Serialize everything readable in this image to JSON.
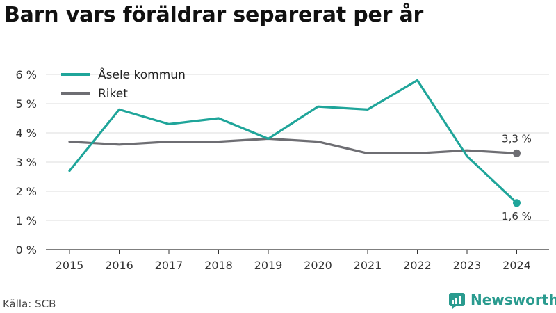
{
  "title": "Barn vars föräldrar separerat per år",
  "source": "Källa: SCB",
  "brand": {
    "name": "Newsworthy",
    "icon": "newsworthy-logo-icon"
  },
  "colors": {
    "asele": "#1fa59a",
    "riket": "#6e6e73",
    "grid": "#dddddd",
    "axis": "#333333"
  },
  "chart_data": {
    "type": "line",
    "categories": [
      "2015",
      "2016",
      "2017",
      "2018",
      "2019",
      "2020",
      "2021",
      "2022",
      "2023",
      "2024"
    ],
    "series": [
      {
        "name": "Åsele kommun",
        "values": [
          2.7,
          4.8,
          4.3,
          4.5,
          3.8,
          4.9,
          4.8,
          5.8,
          3.2,
          1.6
        ],
        "end_label": "1,6 %"
      },
      {
        "name": "Riket",
        "values": [
          3.7,
          3.6,
          3.7,
          3.7,
          3.8,
          3.7,
          3.3,
          3.3,
          3.4,
          3.3
        ],
        "end_label": "3,3 %"
      }
    ],
    "ylim": [
      0,
      6
    ],
    "yticks": [
      0,
      1,
      2,
      3,
      4,
      5,
      6
    ],
    "ytick_labels": [
      "0 %",
      "1 %",
      "2 %",
      "3 %",
      "4 %",
      "5 %",
      "6 %"
    ],
    "grid": true,
    "legend_position": "top-left"
  }
}
